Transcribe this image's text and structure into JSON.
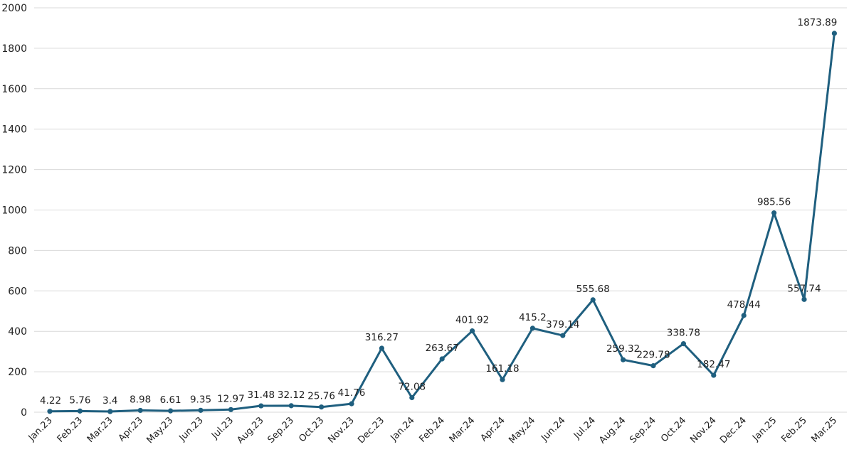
{
  "chart_data": {
    "type": "line",
    "title": "",
    "xlabel": "",
    "ylabel": "",
    "ylim": [
      0,
      2000
    ],
    "yticks": [
      0,
      200,
      400,
      600,
      800,
      1000,
      1200,
      1400,
      1600,
      1800,
      2000
    ],
    "grid": true,
    "legend": "none",
    "line_color": "#1f5f7f",
    "categories": [
      "Jan.23",
      "Feb.23",
      "Mar.23",
      "Apr.23",
      "May.23",
      "Jun.23",
      "Jul.23",
      "Aug.23",
      "Sep.23",
      "Oct.23",
      "Nov.23",
      "Dec.23",
      "Jan.24",
      "Feb.24",
      "Mar.24",
      "Apr.24",
      "May.24",
      "Jun.24",
      "Jul.24",
      "Aug.24",
      "Sep.24",
      "Oct.24",
      "Nov.24",
      "Dec.24",
      "Jan.25",
      "Feb.25",
      "Mar.25"
    ],
    "values": [
      4.22,
      5.76,
      3.4,
      8.98,
      6.61,
      9.35,
      12.97,
      31.48,
      32.12,
      25.76,
      41.76,
      316.27,
      72.08,
      263.67,
      401.92,
      161.18,
      415.2,
      379.14,
      555.68,
      259.32,
      229.78,
      338.78,
      182.47,
      478.44,
      985.56,
      557.74,
      1873.89
    ],
    "data_labels": [
      "4.22",
      "5.76",
      "3.4",
      "8.98",
      "6.61",
      "9.35",
      "12.97",
      "31.48",
      "32.12",
      "25.76",
      "41.76",
      "316.27",
      "72.08",
      "263.67",
      "401.92",
      "161.18",
      "415.2",
      "379.14",
      "555.68",
      "259.32",
      "229.78",
      "338.78",
      "182.47",
      "478.44",
      "985.56",
      "557.74",
      "1873.89"
    ]
  }
}
